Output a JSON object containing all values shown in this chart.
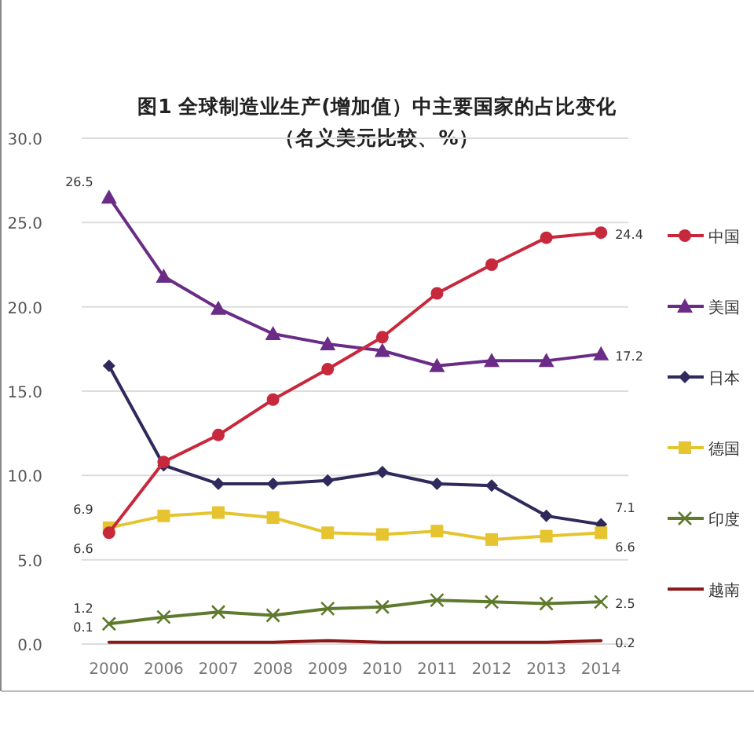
{
  "chart_data": {
    "type": "line",
    "title": "图1  全球制造业生产(增加值）中主要国家的占比变化",
    "subtitle": "（名义美元比较、%）",
    "categories": [
      "2000",
      "2006",
      "2007",
      "2008",
      "2009",
      "2010",
      "2011",
      "2012",
      "2013",
      "2014"
    ],
    "ylim": [
      0,
      30
    ],
    "yticks": [
      {
        "value": 0,
        "label": "0.0"
      },
      {
        "value": 5,
        "label": "5.0"
      },
      {
        "value": 10,
        "label": "10.0"
      },
      {
        "value": 15,
        "label": "15.0"
      },
      {
        "value": 20,
        "label": "20.0"
      },
      {
        "value": 25,
        "label": "25.0"
      },
      {
        "value": 30,
        "label": "30.0"
      }
    ],
    "grid": "y",
    "legend": "right",
    "series": [
      {
        "name": "中国",
        "color": "#c8283c",
        "marker": "circle",
        "values": [
          6.6,
          10.8,
          12.4,
          14.5,
          16.3,
          18.2,
          20.8,
          22.5,
          24.1,
          24.4
        ],
        "value_labels": [
          "6.6",
          null,
          null,
          null,
          null,
          null,
          null,
          null,
          null,
          "24.4"
        ]
      },
      {
        "name": "美国",
        "color": "#6a2c86",
        "marker": "triangle",
        "values": [
          26.5,
          21.8,
          19.9,
          18.4,
          17.8,
          17.4,
          16.5,
          16.8,
          16.8,
          17.2
        ],
        "value_labels": [
          "26.5",
          null,
          null,
          null,
          null,
          null,
          null,
          null,
          null,
          "17.2"
        ]
      },
      {
        "name": "日本",
        "color": "#2f2a5c",
        "marker": "diamond",
        "values": [
          16.5,
          10.6,
          9.5,
          9.5,
          9.7,
          10.2,
          9.5,
          9.4,
          7.6,
          7.1
        ],
        "value_labels": [
          null,
          null,
          null,
          null,
          null,
          null,
          null,
          null,
          null,
          "7.1"
        ]
      },
      {
        "name": "德国",
        "color": "#e6c430",
        "marker": "square",
        "values": [
          6.9,
          7.6,
          7.8,
          7.5,
          6.6,
          6.5,
          6.7,
          6.2,
          6.4,
          6.6
        ],
        "value_labels": [
          "6.9",
          null,
          null,
          null,
          null,
          null,
          null,
          null,
          null,
          "6.6"
        ]
      },
      {
        "name": "印度",
        "color": "#5e7a2c",
        "marker": "cross",
        "values": [
          1.2,
          1.6,
          1.9,
          1.7,
          2.1,
          2.2,
          2.6,
          2.5,
          2.4,
          2.5
        ],
        "value_labels": [
          "1.2",
          null,
          null,
          null,
          null,
          null,
          null,
          null,
          null,
          "2.5"
        ]
      },
      {
        "name": "越南",
        "color": "#8b1a1a",
        "marker": "none",
        "values": [
          0.1,
          0.1,
          0.1,
          0.1,
          0.2,
          0.1,
          0.1,
          0.1,
          0.1,
          0.2
        ],
        "value_labels": [
          "0.1",
          null,
          null,
          null,
          null,
          null,
          null,
          null,
          null,
          "0.2"
        ]
      }
    ]
  }
}
